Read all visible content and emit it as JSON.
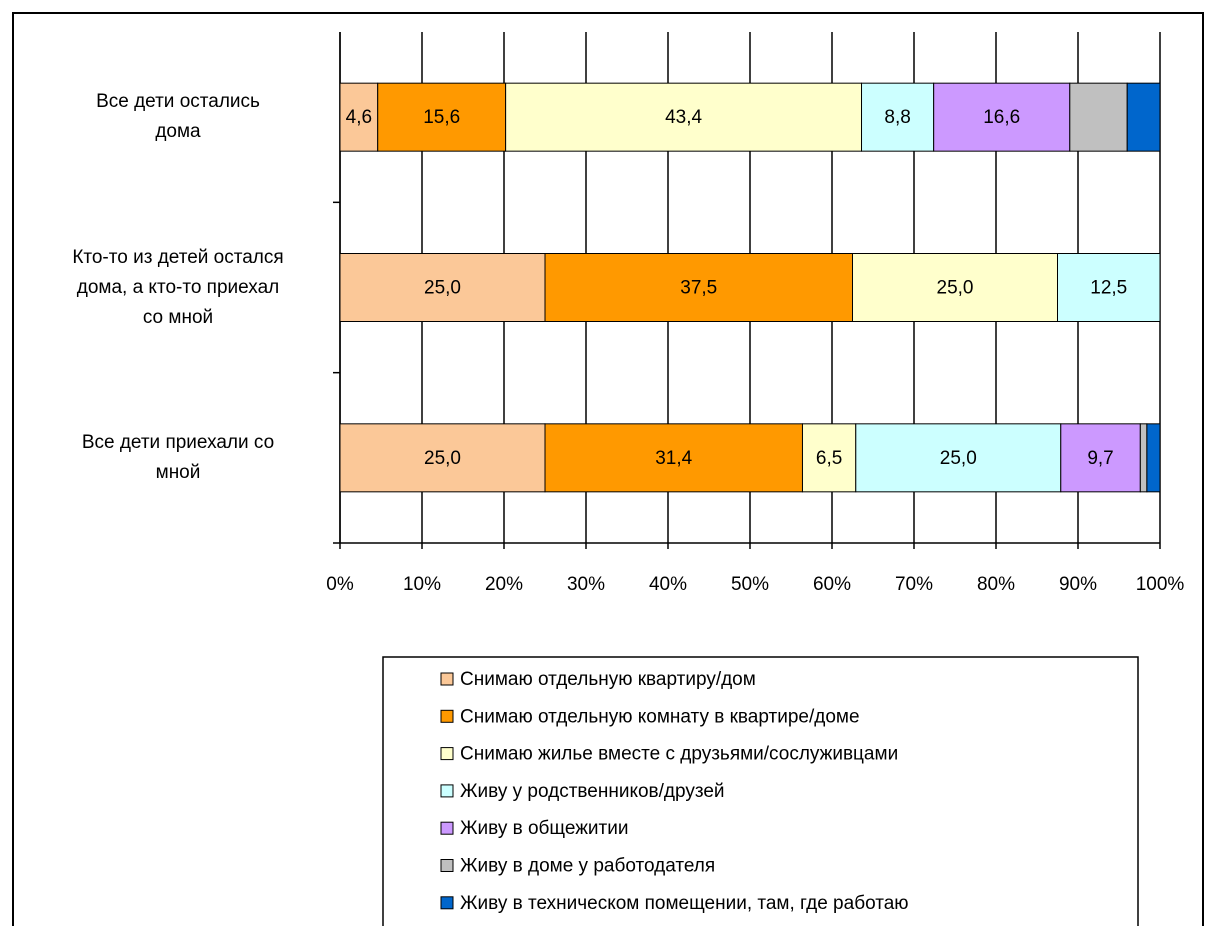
{
  "chart_data": {
    "type": "stacked_barh",
    "categories": [
      "Все дети остались\nдома",
      "Кто-то из детей остался\nдома, а кто-то приехал\nсо мной",
      "Все дети приехали со\nмной"
    ],
    "series": [
      {
        "name": "Снимаю отдельную квартиру/дом",
        "color": "#fbc898",
        "values": [
          4.6,
          25.0,
          25.0
        ],
        "value_labels": [
          "4,6",
          "25,0",
          "25,0"
        ]
      },
      {
        "name": "Снимаю отдельную комнату в квартире/доме",
        "color": "#ff9900",
        "values": [
          15.6,
          37.5,
          31.4
        ],
        "value_labels": [
          "15,6",
          "37,5",
          "31,4"
        ]
      },
      {
        "name": "Снимаю жилье вместе с друзьями/сослуживцами",
        "color": "#ffffcc",
        "values": [
          43.4,
          25.0,
          6.5
        ],
        "value_labels": [
          "43,4",
          "25,0",
          "6,5"
        ]
      },
      {
        "name": "Живу у родственников/друзей",
        "color": "#ccffff",
        "values": [
          8.8,
          12.5,
          25.0
        ],
        "value_labels": [
          "8,8",
          "12,5",
          "25,0"
        ]
      },
      {
        "name": "Живу в общежитии",
        "color": "#cc99ff",
        "values": [
          16.6,
          0,
          9.7
        ],
        "value_labels": [
          "16,6",
          null,
          "9,7"
        ]
      },
      {
        "name": "Живу в доме у работодателя",
        "color": "#c0c0c0",
        "values": [
          7.0,
          0,
          0.8
        ],
        "value_labels": [
          null,
          null,
          null
        ]
      },
      {
        "name": "Живу в техническом помещении, там, где работаю",
        "color": "#0066cc",
        "values": [
          4.0,
          0,
          1.6
        ],
        "value_labels": [
          null,
          null,
          null
        ]
      }
    ],
    "xlim": [
      0,
      100
    ],
    "xticks": [
      {
        "value": 0,
        "label": "0%"
      },
      {
        "value": 10,
        "label": "10%"
      },
      {
        "value": 20,
        "label": "20%"
      },
      {
        "value": 30,
        "label": "30%"
      },
      {
        "value": 40,
        "label": "40%"
      },
      {
        "value": 50,
        "label": "50%"
      },
      {
        "value": 60,
        "label": "60%"
      },
      {
        "value": 70,
        "label": "70%"
      },
      {
        "value": 80,
        "label": "80%"
      },
      {
        "value": 90,
        "label": "90%"
      },
      {
        "value": 100,
        "label": "100%"
      }
    ],
    "grid": true,
    "legend": "bottom"
  }
}
